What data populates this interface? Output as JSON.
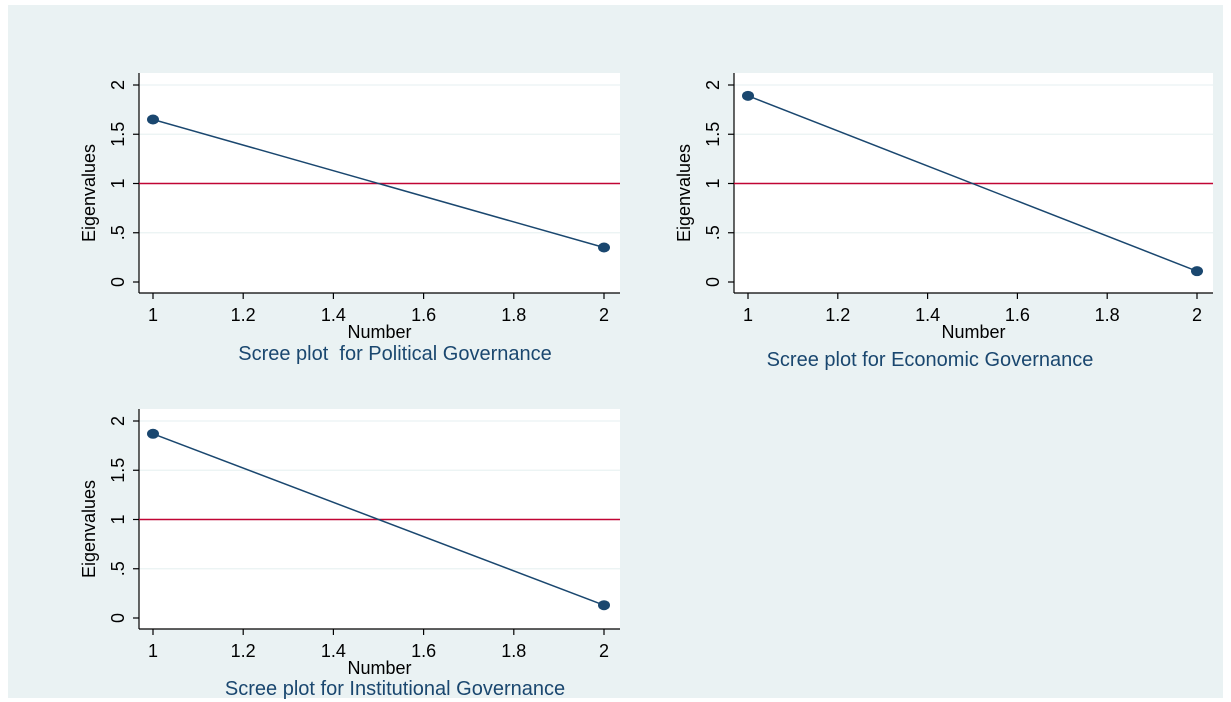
{
  "colors": {
    "background": "#eaf2f3",
    "plot_region": "#ffffff",
    "gridline": "#eaf2f3",
    "series": "#1a476f",
    "reference_line": "#c10534",
    "title": "#1a476f"
  },
  "chart_data": [
    {
      "type": "line",
      "title": "Scree plot  for Political Governance",
      "xlabel": "Number",
      "ylabel": "Eigenvalues",
      "x": [
        1,
        2
      ],
      "series": [
        {
          "values": [
            1.65,
            0.35
          ]
        }
      ],
      "reference_line_y": 1,
      "xlim": [
        1,
        2
      ],
      "ylim": [
        0,
        2
      ],
      "xticks": [
        1,
        1.2,
        1.4,
        1.6,
        1.8,
        2
      ],
      "xtick_labels": [
        "1",
        "1.2",
        "1.4",
        "1.6",
        "1.8",
        "2"
      ],
      "yticks": [
        0,
        0.5,
        1,
        1.5,
        2
      ],
      "ytick_labels": [
        "0",
        ".5",
        "1",
        "1.5",
        "2"
      ],
      "grid": true
    },
    {
      "type": "line",
      "title": "Scree plot for Economic Governance",
      "xlabel": "Number",
      "ylabel": "Eigenvalues",
      "x": [
        1,
        2
      ],
      "series": [
        {
          "values": [
            1.89,
            0.11
          ]
        }
      ],
      "reference_line_y": 1,
      "xlim": [
        1,
        2
      ],
      "ylim": [
        0,
        2
      ],
      "xticks": [
        1,
        1.2,
        1.4,
        1.6,
        1.8,
        2
      ],
      "xtick_labels": [
        "1",
        "1.2",
        "1.4",
        "1.6",
        "1.8",
        "2"
      ],
      "yticks": [
        0,
        0.5,
        1,
        1.5,
        2
      ],
      "ytick_labels": [
        "0",
        ".5",
        "1",
        "1.5",
        "2"
      ],
      "grid": true
    },
    {
      "type": "line",
      "title": "Scree plot for Institutional Governance",
      "xlabel": "Number",
      "ylabel": "Eigenvalues",
      "x": [
        1,
        2
      ],
      "series": [
        {
          "values": [
            1.87,
            0.13
          ]
        }
      ],
      "reference_line_y": 1,
      "xlim": [
        1,
        2
      ],
      "ylim": [
        0,
        2
      ],
      "xticks": [
        1,
        1.2,
        1.4,
        1.6,
        1.8,
        2
      ],
      "xtick_labels": [
        "1",
        "1.2",
        "1.4",
        "1.6",
        "1.8",
        "2"
      ],
      "yticks": [
        0,
        0.5,
        1,
        1.5,
        2
      ],
      "ytick_labels": [
        "0",
        ".5",
        "1",
        "1.5",
        "2"
      ],
      "grid": true
    }
  ]
}
